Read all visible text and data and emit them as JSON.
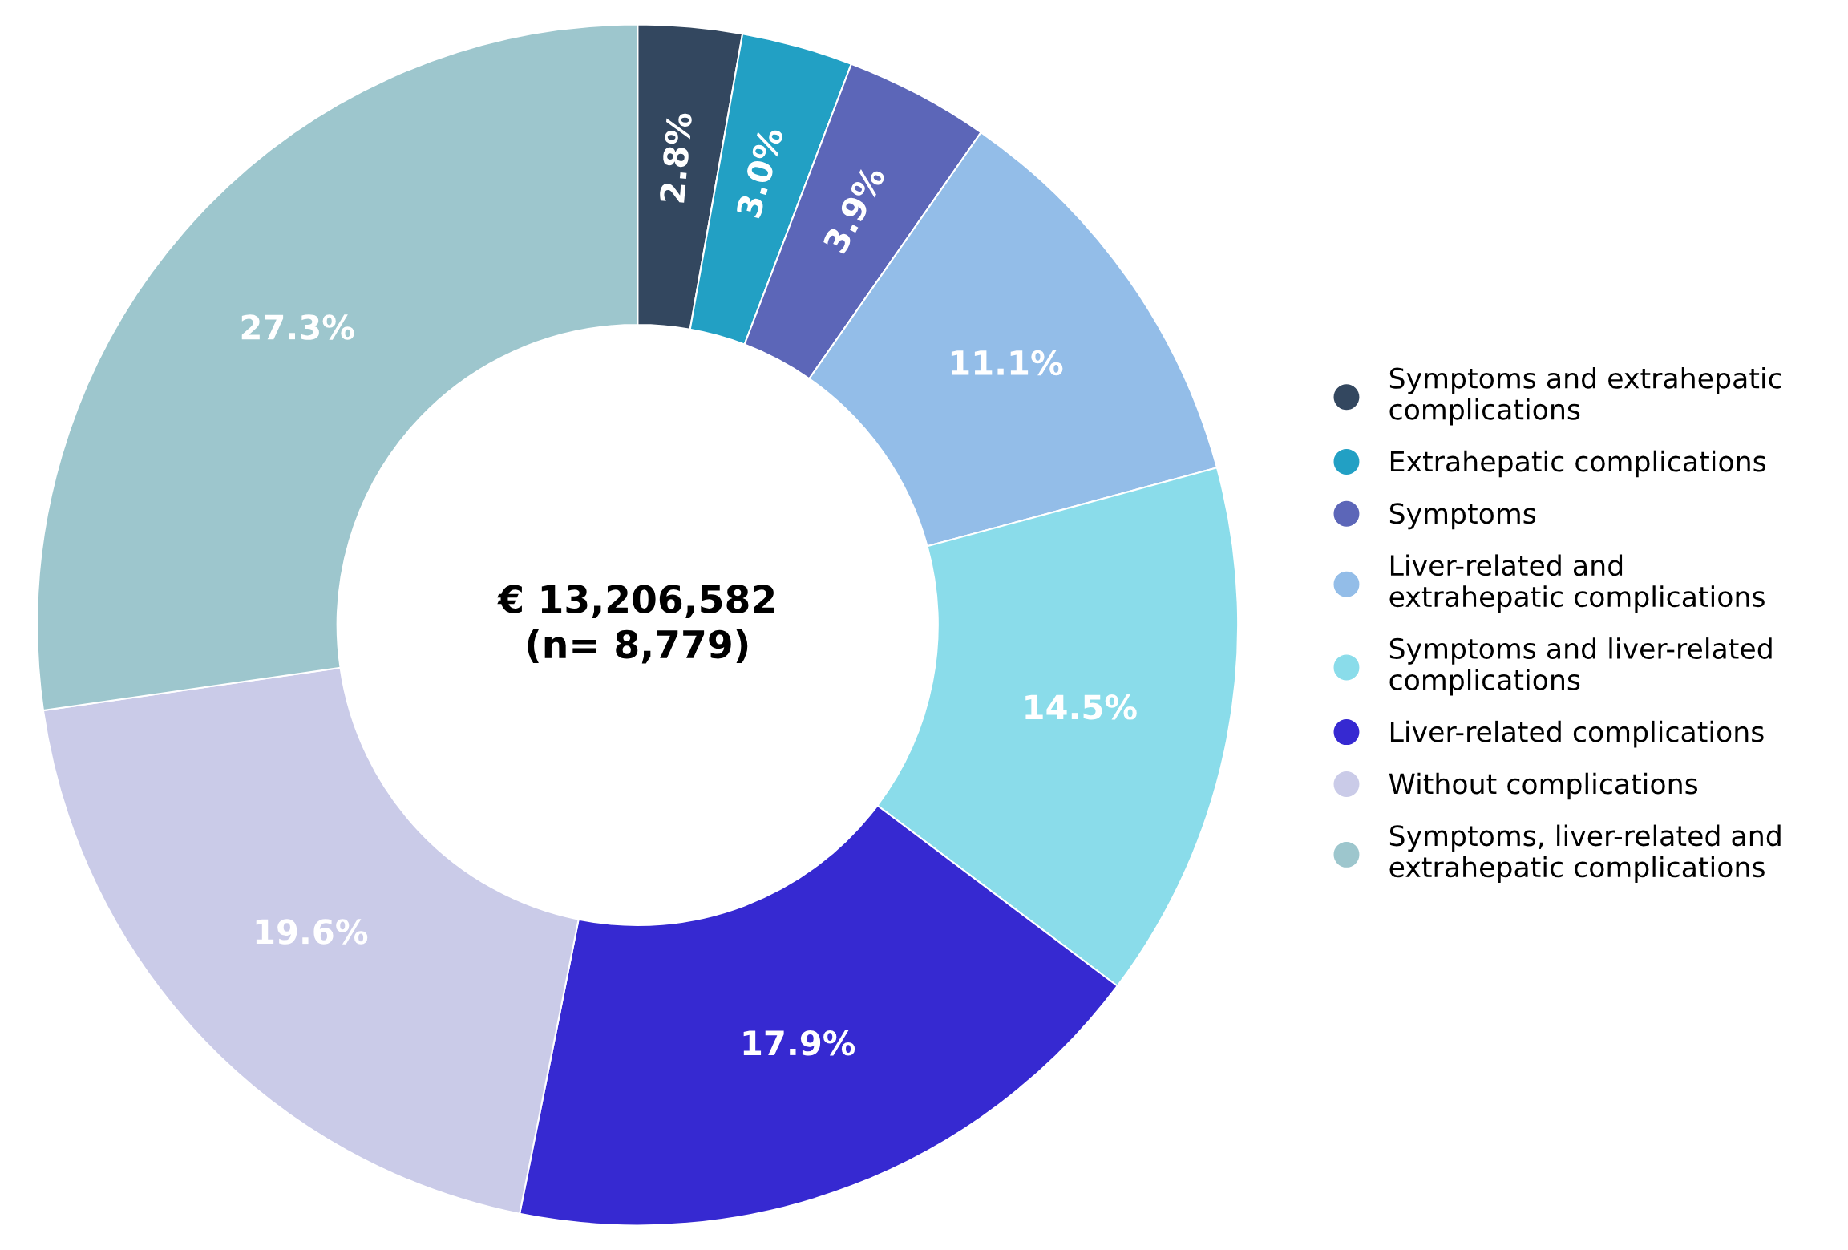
{
  "chart_data": {
    "type": "donut",
    "categories": [
      "Symptoms and extrahepatic\ncomplications",
      "Extrahepatic complications",
      "Symptoms",
      "Liver-related and\nextrahepatic complications",
      "Symptoms and liver-related\ncomplications",
      "Liver-related complications",
      "Without complications",
      "Symptoms, liver-related and\nextrahepatic complications"
    ],
    "values": [
      2.8,
      3.0,
      3.9,
      11.1,
      14.5,
      17.9,
      19.6,
      27.3
    ],
    "colors": [
      "#33475f",
      "#22a0c4",
      "#5c66b8",
      "#93bde8",
      "#8adcea",
      "#3629d1",
      "#cacbe8",
      "#9dc6cd"
    ],
    "value_labels": [
      "2.8%",
      "3.0%",
      "3.9%",
      "11.1%",
      "14.5%",
      "17.9%",
      "19.6%",
      "27.3%"
    ],
    "annotations": [
      "€ 13,206,582\n(n= 8,779)"
    ],
    "legend": "right"
  }
}
